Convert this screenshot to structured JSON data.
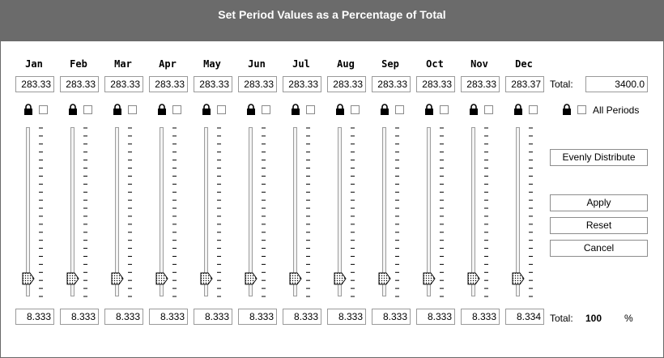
{
  "title": "Set Period Values as a Percentage of Total",
  "months": [
    {
      "label": "Jan",
      "value": "283.33",
      "percent": "8.333",
      "locked": false,
      "level": 0.0833
    },
    {
      "label": "Feb",
      "value": "283.33",
      "percent": "8.333",
      "locked": false,
      "level": 0.0833
    },
    {
      "label": "Mar",
      "value": "283.33",
      "percent": "8.333",
      "locked": false,
      "level": 0.0833
    },
    {
      "label": "Apr",
      "value": "283.33",
      "percent": "8.333",
      "locked": false,
      "level": 0.0833
    },
    {
      "label": "May",
      "value": "283.33",
      "percent": "8.333",
      "locked": false,
      "level": 0.0833
    },
    {
      "label": "Jun",
      "value": "283.33",
      "percent": "8.333",
      "locked": false,
      "level": 0.0833
    },
    {
      "label": "Jul",
      "value": "283.33",
      "percent": "8.333",
      "locked": false,
      "level": 0.0833
    },
    {
      "label": "Aug",
      "value": "283.33",
      "percent": "8.333",
      "locked": false,
      "level": 0.0833
    },
    {
      "label": "Sep",
      "value": "283.33",
      "percent": "8.333",
      "locked": false,
      "level": 0.0833
    },
    {
      "label": "Oct",
      "value": "283.33",
      "percent": "8.333",
      "locked": false,
      "level": 0.0833
    },
    {
      "label": "Nov",
      "value": "283.33",
      "percent": "8.333",
      "locked": false,
      "level": 0.0833
    },
    {
      "label": "Dec",
      "value": "283.37",
      "percent": "8.334",
      "locked": false,
      "level": 0.0834
    }
  ],
  "total": {
    "label": "Total:",
    "value": "3400.0"
  },
  "all_periods": {
    "label": "All Periods",
    "checked": false
  },
  "buttons": {
    "evenly": "Evenly Distribute",
    "apply": "Apply",
    "reset": "Reset",
    "cancel": "Cancel"
  },
  "percent_total": {
    "label": "Total:",
    "value": "100",
    "unit": "%"
  },
  "icons": {
    "lock": "lock-icon",
    "thumb": "slider-thumb-icon"
  }
}
